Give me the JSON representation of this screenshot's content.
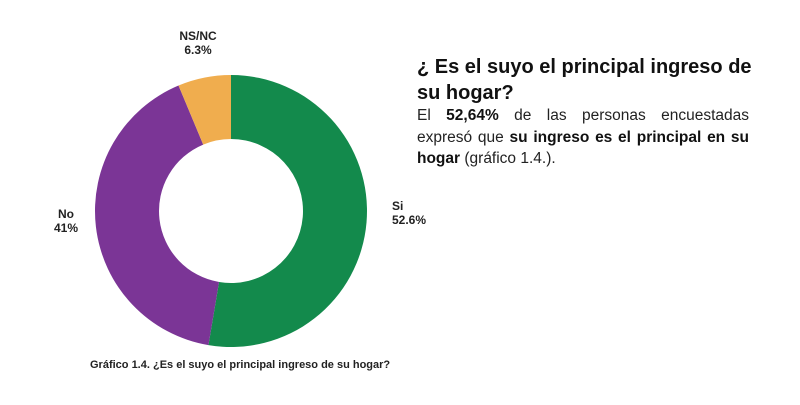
{
  "chart_data": {
    "type": "pie",
    "title": "",
    "slices": [
      {
        "label": "Si",
        "value": 52.6,
        "value_label": "52.6%",
        "color": "#138a4c"
      },
      {
        "label": "No",
        "value": 41,
        "value_label": "41%",
        "color": "#7b3596"
      },
      {
        "label": "NS/NC",
        "value": 6.3,
        "value_label": "6.3%",
        "color": "#f0ad4e"
      }
    ],
    "donut": true,
    "start_angle_deg": 0,
    "direction": "clockwise"
  },
  "caption": "Gráfico 1.4. ¿Es el suyo el principal ingreso de su hogar?",
  "text_panel": {
    "heading": "¿ Es el suyo el principal ingreso de su hogar?",
    "body_1": "El ",
    "body_bold_1": "52,64%",
    "body_2": " de las personas encuestadas expresó que ",
    "body_bold_2": "su ingreso es el principal en su hogar",
    "body_3": " (gráfico 1.4.)."
  }
}
